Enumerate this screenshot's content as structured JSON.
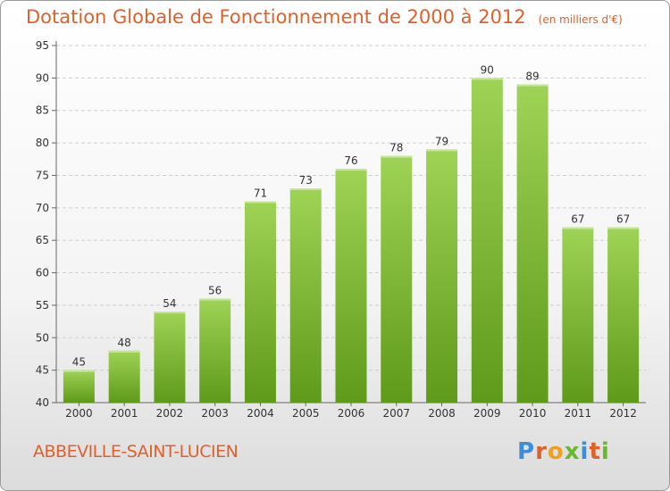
{
  "header": {
    "title": "Dotation Globale de Fonctionnement de 2000 à 2012",
    "unit": "(en milliers d'€)"
  },
  "footer": {
    "commune": "ABBEVILLE-SAINT-LUCIEN",
    "logo": "Proxiti"
  },
  "colors": {
    "title": "#e0602a",
    "bar_top": "#9fd356",
    "bar_bottom": "#5f9a1a",
    "logo_letters": [
      "#3a8fd8",
      "#e0602a",
      "#f0a020",
      "#6ab82e",
      "#3a8fd8",
      "#e0602a",
      "#6ab82e"
    ]
  },
  "chart_data": {
    "type": "bar",
    "categories": [
      "2000",
      "2001",
      "2002",
      "2003",
      "2004",
      "2005",
      "2006",
      "2007",
      "2008",
      "2009",
      "2010",
      "2011",
      "2012"
    ],
    "values": [
      45,
      48,
      54,
      56,
      71,
      73,
      76,
      78,
      79,
      90,
      89,
      67,
      67
    ],
    "ylim": [
      40,
      95
    ],
    "yticks": [
      40,
      45,
      50,
      55,
      60,
      65,
      70,
      75,
      80,
      85,
      90,
      95
    ],
    "grid": "horizontal dashed",
    "data_labels": true
  }
}
